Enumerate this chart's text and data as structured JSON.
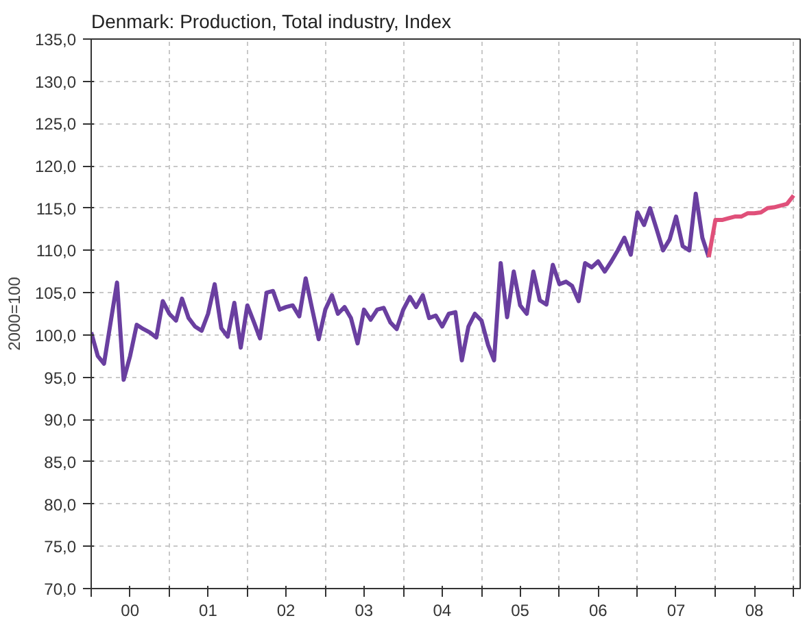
{
  "chart_data": {
    "type": "line",
    "title": "Denmark: Production, Total industry, Index",
    "ylabel": "2000=100",
    "series": [
      {
        "color": "#6a3fa0",
        "x": [
          "2000-01",
          "2000-02",
          "2000-03",
          "2000-04",
          "2000-05",
          "2000-06",
          "2000-07",
          "2000-08",
          "2000-09",
          "2000-10",
          "2000-11",
          "2000-12",
          "2001-01",
          "2001-02",
          "2001-03",
          "2001-04",
          "2001-05",
          "2001-06",
          "2001-07",
          "2001-08",
          "2001-09",
          "2001-10",
          "2001-11",
          "2001-12",
          "2002-01",
          "2002-02",
          "2002-03",
          "2002-04",
          "2002-05",
          "2002-06",
          "2002-07",
          "2002-08",
          "2002-09",
          "2002-10",
          "2002-11",
          "2002-12",
          "2003-01",
          "2003-02",
          "2003-03",
          "2003-04",
          "2003-05",
          "2003-06",
          "2003-07",
          "2003-08",
          "2003-09",
          "2003-10",
          "2003-11",
          "2003-12",
          "2004-01",
          "2004-02",
          "2004-03",
          "2004-04",
          "2004-05",
          "2004-06",
          "2004-07",
          "2004-08",
          "2004-09",
          "2004-10",
          "2004-11",
          "2004-12",
          "2005-01",
          "2005-02",
          "2005-03",
          "2005-04",
          "2005-05",
          "2005-06",
          "2005-07",
          "2005-08",
          "2005-09",
          "2005-10",
          "2005-11",
          "2005-12",
          "2006-01",
          "2006-02",
          "2006-03",
          "2006-04",
          "2006-05",
          "2006-06",
          "2006-07",
          "2006-08",
          "2006-09",
          "2006-10",
          "2006-11",
          "2006-12",
          "2007-01",
          "2007-02",
          "2007-03",
          "2007-04",
          "2007-05",
          "2007-06",
          "2007-07",
          "2007-08",
          "2007-09",
          "2007-10",
          "2007-11",
          "2007-12"
        ],
        "values": [
          100.3,
          97.5,
          96.6,
          101.5,
          106.2,
          94.7,
          97.5,
          101.2,
          100.7,
          100.3,
          99.7,
          104.0,
          102.5,
          101.7,
          104.3,
          102,
          101,
          100.5,
          102.5,
          106,
          100.8,
          99.8,
          103.8,
          98.5,
          103.5,
          101.5,
          99.6,
          105,
          105.2,
          103,
          103.3,
          103.5,
          102.2,
          106.7,
          103,
          99.5,
          103,
          104.7,
          102.5,
          103.3,
          102,
          99,
          103,
          101.8,
          103,
          103.2,
          101.5,
          100.7,
          103,
          104.5,
          103.3,
          104.7,
          102,
          102.3,
          101,
          102.5,
          102.7,
          97,
          101,
          102.5,
          101.7,
          98.8,
          97,
          108.5,
          102.1,
          107.5,
          103.5,
          102.5,
          107.5,
          104.1,
          103.6,
          108.3,
          106,
          106.3,
          105.8,
          104,
          108.5,
          108,
          108.7,
          107.5,
          108.7,
          110,
          111.5,
          109.5,
          114.5,
          113,
          115,
          112.5,
          110,
          111.3,
          114,
          110.5,
          110,
          116.7,
          111.5,
          109.2
        ]
      },
      {
        "color": "#e0507a",
        "x": [
          "2007-12",
          "2008-01",
          "2008-02",
          "2008-03",
          "2008-04",
          "2008-05",
          "2008-06",
          "2008-07",
          "2008-08",
          "2008-09",
          "2008-10",
          "2008-11",
          "2008-12",
          "2009-01"
        ],
        "values": [
          109.2,
          113.6,
          113.6,
          113.8,
          114,
          114,
          114.4,
          114.4,
          114.5,
          115,
          115.1,
          115.3,
          115.5,
          116.5
        ]
      }
    ],
    "xlim": [
      "2000-01",
      "2009-02"
    ],
    "xticks": [
      {
        "value": "2000-01",
        "label": null
      },
      {
        "value": "2000-07",
        "label": "00"
      },
      {
        "value": "2001-01",
        "label": null
      },
      {
        "value": "2001-07",
        "label": "01"
      },
      {
        "value": "2002-01",
        "label": null
      },
      {
        "value": "2002-07",
        "label": "02"
      },
      {
        "value": "2003-01",
        "label": null
      },
      {
        "value": "2003-07",
        "label": "03"
      },
      {
        "value": "2004-01",
        "label": null
      },
      {
        "value": "2004-07",
        "label": "04"
      },
      {
        "value": "2005-01",
        "label": null
      },
      {
        "value": "2005-07",
        "label": "05"
      },
      {
        "value": "2006-01",
        "label": null
      },
      {
        "value": "2006-07",
        "label": "06"
      },
      {
        "value": "2007-01",
        "label": null
      },
      {
        "value": "2007-07",
        "label": "07"
      },
      {
        "value": "2008-01",
        "label": null
      },
      {
        "value": "2008-07",
        "label": "08"
      },
      {
        "value": "2009-01",
        "label": null
      }
    ],
    "ylim": [
      70,
      135
    ],
    "yticks": [
      {
        "value": 70,
        "label": "70,0"
      },
      {
        "value": 75,
        "label": "75,0"
      },
      {
        "value": 80,
        "label": "80,0"
      },
      {
        "value": 85,
        "label": "85,0"
      },
      {
        "value": 90,
        "label": "90,0"
      },
      {
        "value": 95,
        "label": "95,0"
      },
      {
        "value": 100,
        "label": "100,0"
      },
      {
        "value": 105,
        "label": "105,0"
      },
      {
        "value": 110,
        "label": "110,0"
      },
      {
        "value": 115,
        "label": "115,0"
      },
      {
        "value": 120,
        "label": "120,0"
      },
      {
        "value": 125,
        "label": "125,0"
      },
      {
        "value": 130,
        "label": "130,0"
      },
      {
        "value": 135,
        "label": "135,0"
      }
    ],
    "grid": true,
    "line_style": "solid"
  }
}
